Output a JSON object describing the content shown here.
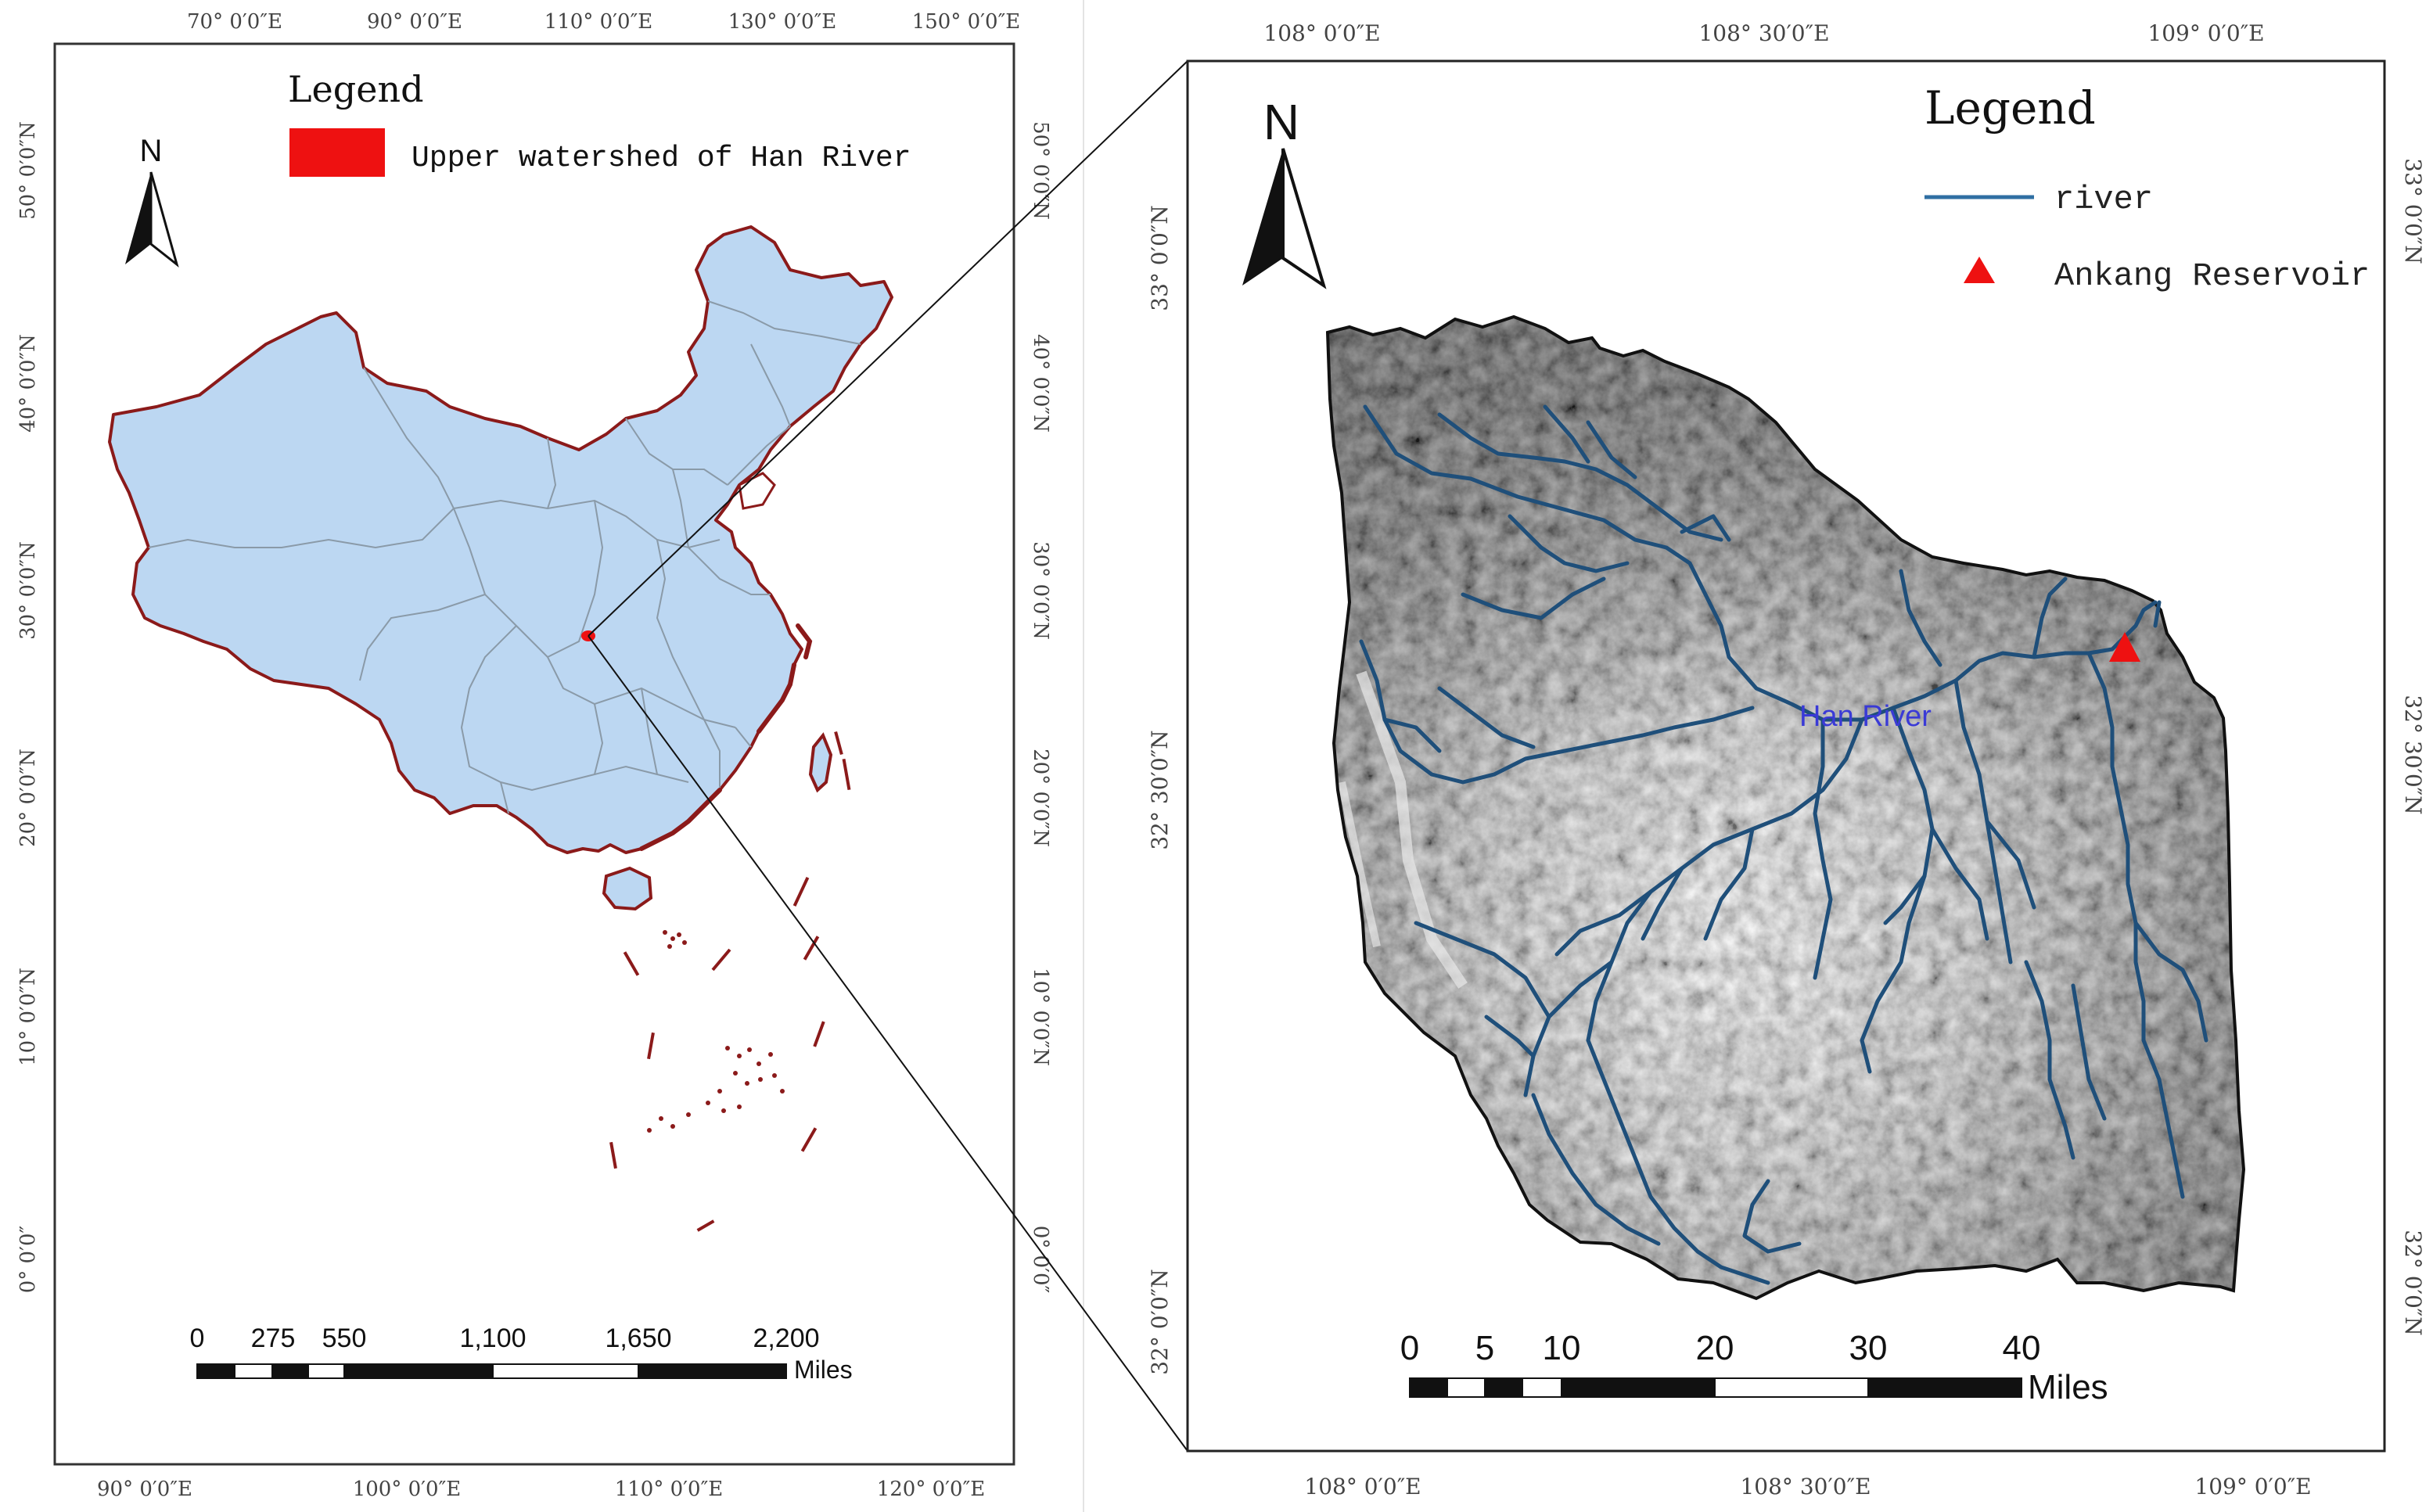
{
  "left_map": {
    "top_ticks": [
      "70° 0′0″E",
      "90° 0′0″E",
      "110° 0′0″E",
      "130° 0′0″E",
      "150° 0′0″E"
    ],
    "bottom_ticks": [
      "90° 0′0″E",
      "100° 0′0″E",
      "110° 0′0″E",
      "120° 0′0″E"
    ],
    "left_ticks": [
      "50° 0′0″N",
      "40° 0′0″N",
      "30° 0′0″N",
      "20° 0′0″N",
      "10° 0′0″N",
      "0° 0′0″"
    ],
    "right_ticks": [
      "50° 0′0″N",
      "40° 0′0″N",
      "30° 0′0″N",
      "20° 0′0″N",
      "10° 0′0″N",
      "0° 0′0″"
    ],
    "north_label": "N",
    "legend": {
      "title": "Legend",
      "item_label": "Upper watershed of Han River",
      "item_color": "#ee1111"
    },
    "scalebar": {
      "labels": [
        "0",
        "275",
        "550",
        "1,100",
        "1,650",
        "2,200"
      ],
      "unit": "Miles"
    },
    "colors": {
      "land": "#bcd7f2",
      "border": "#8b1a1a",
      "province": "#8a9aa8",
      "highlight": "#ee1111"
    }
  },
  "right_map": {
    "top_ticks": [
      "108° 0′0″E",
      "108° 30′0″E",
      "109° 0′0″E"
    ],
    "bottom_ticks": [
      "108° 0′0″E",
      "108° 30′0″E",
      "109° 0′0″E"
    ],
    "left_ticks": [
      "33° 0′0″N",
      "32° 30′0″N",
      "32° 0′0″N"
    ],
    "right_ticks": [
      "33° 0′0″N",
      "32° 30′0″N",
      "32° 0′0″N"
    ],
    "north_label": "N",
    "legend": {
      "title": "Legend",
      "river_label": "river",
      "reservoir_label": "Ankang Reservoir",
      "river_color": "#2f6fa3",
      "reservoir_color": "#ee1111"
    },
    "river_name": "Han River",
    "scalebar": {
      "labels": [
        "0",
        "5",
        "10",
        "20",
        "30",
        "40"
      ],
      "unit": "Miles"
    },
    "colors": {
      "river": "#1f4f7a",
      "dem_dark": "#2a2a2a",
      "dem_light": "#f2f2f2"
    }
  }
}
